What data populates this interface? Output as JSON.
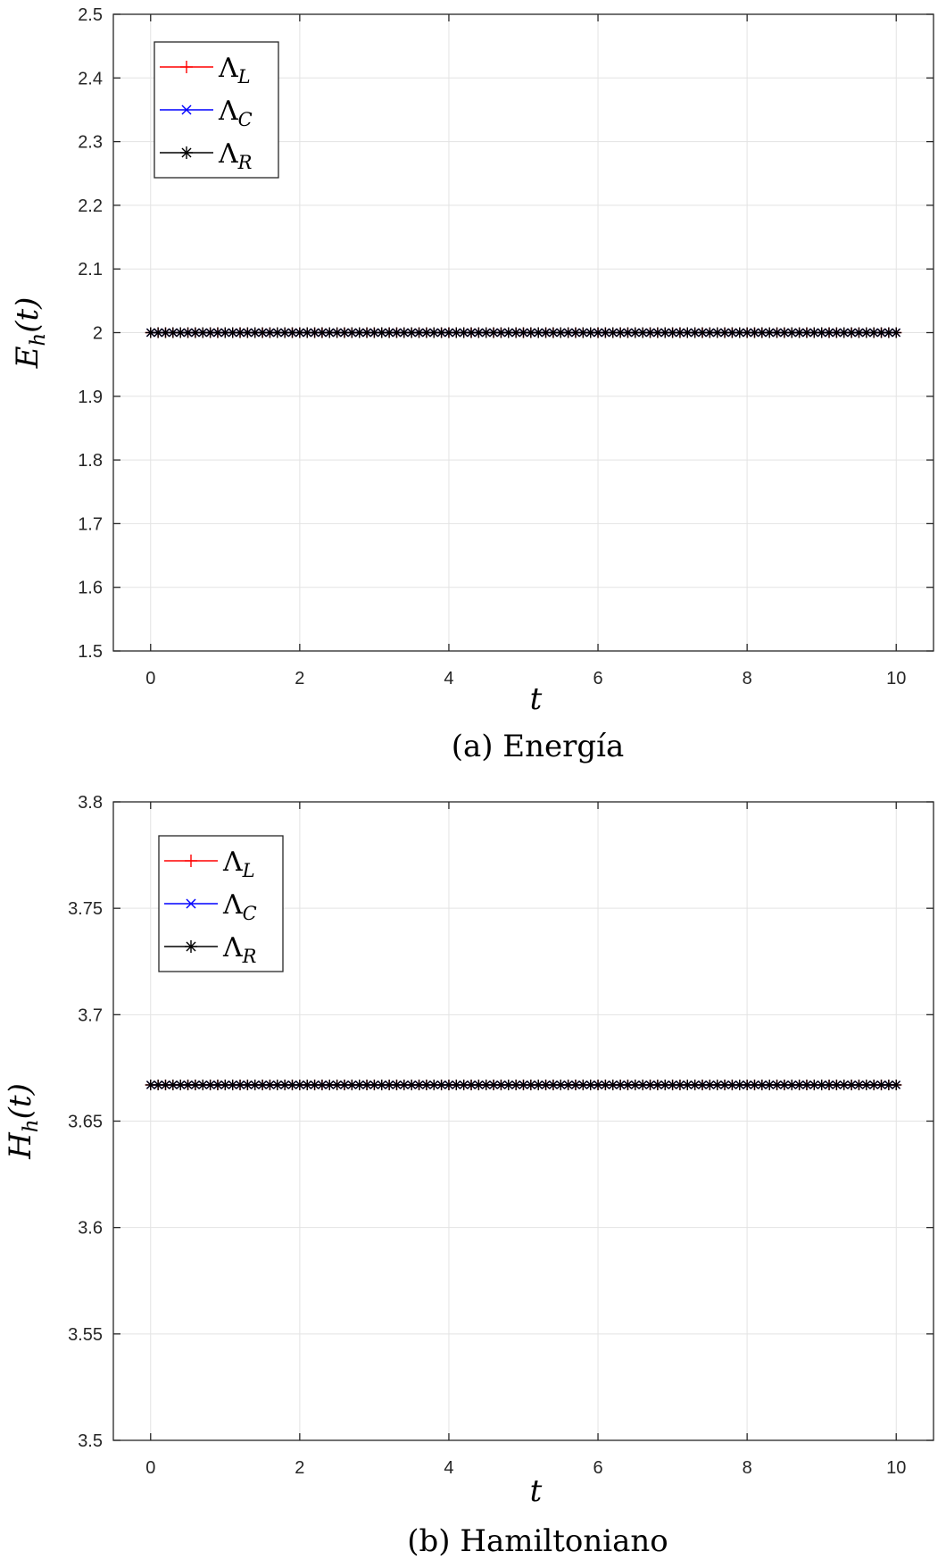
{
  "chart_data": [
    {
      "type": "line",
      "caption": "(a) Energía",
      "xlabel": {
        "base": "t"
      },
      "ylabel": {
        "base": "E",
        "sub": "h",
        "arg": "(t)"
      },
      "xlim": [
        -0.5,
        10.5
      ],
      "ylim": [
        1.5,
        2.5
      ],
      "xticks": [
        0,
        2,
        4,
        6,
        8,
        10
      ],
      "yticks": [
        1.5,
        1.6,
        1.7,
        1.8,
        1.9,
        2,
        2.1,
        2.2,
        2.3,
        2.4,
        2.5
      ],
      "ytick_labels": [
        "1.5",
        "1.6",
        "1.7",
        "1.8",
        "1.9",
        "2",
        "2.1",
        "2.2",
        "2.3",
        "2.4",
        "2.5"
      ],
      "grid": true,
      "legend_location": "top-left",
      "x": {
        "start": 0,
        "stop": 10,
        "step": 0.1
      },
      "series": [
        {
          "name": "ΛL",
          "greek": "Λ",
          "sub": "L",
          "color": "#ff0000",
          "marker": "plus",
          "value": 2
        },
        {
          "name": "ΛC",
          "greek": "Λ",
          "sub": "C",
          "color": "#0000ff",
          "marker": "x",
          "value": 2
        },
        {
          "name": "ΛR",
          "greek": "Λ",
          "sub": "R",
          "color": "#000000",
          "marker": "asterisk",
          "value": 2
        }
      ]
    },
    {
      "type": "line",
      "caption": "(b) Hamiltoniano",
      "xlabel": {
        "base": "t"
      },
      "ylabel": {
        "base": "H",
        "sub": "h",
        "arg": "(t)"
      },
      "xlim": [
        -0.5,
        10.5
      ],
      "ylim": [
        3.5,
        3.8
      ],
      "xticks": [
        0,
        2,
        4,
        6,
        8,
        10
      ],
      "yticks": [
        3.5,
        3.55,
        3.6,
        3.65,
        3.7,
        3.75,
        3.8
      ],
      "ytick_labels": [
        "3.5",
        "3.55",
        "3.6",
        "3.65",
        "3.7",
        "3.75",
        "3.8"
      ],
      "grid": true,
      "legend_location": "top-left",
      "x": {
        "start": 0,
        "stop": 10,
        "step": 0.1
      },
      "series": [
        {
          "name": "ΛL",
          "greek": "Λ",
          "sub": "L",
          "color": "#ff0000",
          "marker": "plus",
          "value": 3.667
        },
        {
          "name": "ΛC",
          "greek": "Λ",
          "sub": "C",
          "color": "#0000ff",
          "marker": "x",
          "value": 3.667
        },
        {
          "name": "ΛR",
          "greek": "Λ",
          "sub": "R",
          "color": "#000000",
          "marker": "asterisk",
          "value": 3.667
        }
      ]
    }
  ]
}
